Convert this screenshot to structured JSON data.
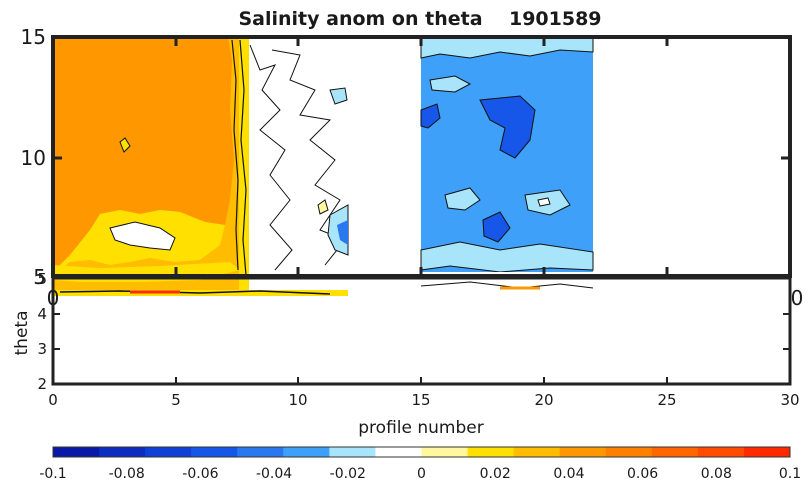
{
  "chart_data": {
    "type": "heatmap",
    "title": "Salinity anom on theta    1901589",
    "xlabel": "profile number",
    "ylabel": "theta",
    "top_panel": {
      "xlim": [
        0,
        30
      ],
      "ylim": [
        5,
        15
      ],
      "yticks": [
        "15",
        "10",
        "5"
      ],
      "xticks_visible": [
        "0",
        "0"
      ]
    },
    "bottom_panel": {
      "xlim": [
        0,
        30
      ],
      "ylim": [
        2,
        5
      ],
      "xticks": [
        "0",
        "5",
        "10",
        "15",
        "20",
        "25",
        "30"
      ],
      "yticks": [
        "2",
        "3",
        "4",
        "5"
      ]
    },
    "data_blocks": [
      {
        "profiles": [
          0,
          12
        ],
        "description": "positive anomaly block"
      },
      {
        "profiles": [
          15,
          22
        ],
        "description": "negative anomaly block"
      }
    ],
    "colorbar": {
      "ticks": [
        "-0.1",
        "-0.08",
        "-0.06",
        "-0.04",
        "-0.02",
        "0",
        "0.02",
        "0.04",
        "0.06",
        "0.08",
        "0.1"
      ],
      "colors": [
        "#0a18a8",
        "#0d2cc0",
        "#1040d8",
        "#1656e8",
        "#2a78f0",
        "#3ea0f8",
        "#a8e4fa",
        "#ffffff",
        "#fff8a0",
        "#ffe000",
        "#ffbc00",
        "#ff9800",
        "#ff8000",
        "#ff6600",
        "#ff4c00",
        "#ff2a00"
      ]
    }
  }
}
